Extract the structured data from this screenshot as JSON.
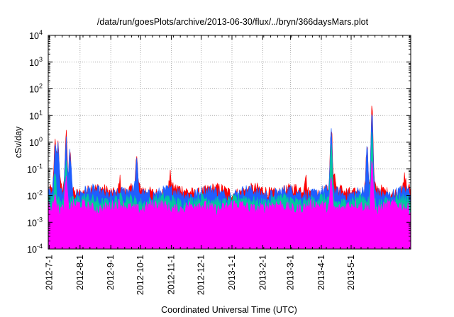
{
  "chart_data": {
    "type": "area",
    "title": "/data/run/goesPlots/archive/2013-06-30/flux/../bryn/366daysMars.plot",
    "xlabel": "Coordinated Universal Time (UTC)",
    "ylabel": "cSv/day",
    "yscale": "log",
    "ylim": [
      0.0001,
      10000
    ],
    "xlim": [
      "2012-06-30",
      "2013-06-30"
    ],
    "grid": true,
    "y_ticks": [
      {
        "base": "10",
        "exp": "-4"
      },
      {
        "base": "10",
        "exp": "-3"
      },
      {
        "base": "10",
        "exp": "-2"
      },
      {
        "base": "10",
        "exp": "-1"
      },
      {
        "base": "10",
        "exp": "0"
      },
      {
        "base": "10",
        "exp": "1"
      },
      {
        "base": "10",
        "exp": "2"
      },
      {
        "base": "10",
        "exp": "3"
      },
      {
        "base": "10",
        "exp": "4"
      }
    ],
    "x_ticks": [
      {
        "label": "2012-7-1",
        "date": "2012-07-01"
      },
      {
        "label": "2012-8-1",
        "date": "2012-08-01"
      },
      {
        "label": "2012-9-1",
        "date": "2012-09-01"
      },
      {
        "label": "2012-10-1",
        "date": "2012-10-01"
      },
      {
        "label": "2012-11-1",
        "date": "2012-11-01"
      },
      {
        "label": "2012-12-1",
        "date": "2012-12-01"
      },
      {
        "label": "2013-1-1",
        "date": "2013-01-01"
      },
      {
        "label": "2013-2-1",
        "date": "2013-02-01"
      },
      {
        "label": "2013-3-1",
        "date": "2013-03-01"
      },
      {
        "label": "2013-4-1",
        "date": "2013-04-01"
      },
      {
        "label": "2013-5-1",
        "date": "2013-05-01"
      }
    ],
    "series": [
      {
        "color": "#ff0000",
        "baseline": 0.015,
        "peaks": [
          {
            "date": "2012-07-07",
            "value": 0.8
          },
          {
            "date": "2012-07-10",
            "value": 0.8
          },
          {
            "date": "2012-07-18",
            "value": 2.0
          },
          {
            "date": "2012-07-22",
            "value": 0.8
          },
          {
            "date": "2012-08-14",
            "value": 0.025
          },
          {
            "date": "2012-09-10",
            "value": 0.05
          },
          {
            "date": "2012-09-27",
            "value": 0.2
          },
          {
            "date": "2012-10-31",
            "value": 0.05
          },
          {
            "date": "2013-03-16",
            "value": 0.06
          },
          {
            "date": "2013-04-11",
            "value": 2.5
          },
          {
            "date": "2013-04-14",
            "value": 0.05
          },
          {
            "date": "2013-05-17",
            "value": 0.5
          },
          {
            "date": "2013-05-22",
            "value": 20.0
          },
          {
            "date": "2013-06-24",
            "value": 0.05
          }
        ]
      },
      {
        "color": "#1f5fff",
        "baseline": 0.013,
        "peaks": [
          {
            "date": "2012-07-07",
            "value": 0.6
          },
          {
            "date": "2012-07-10",
            "value": 0.6
          },
          {
            "date": "2012-07-18",
            "value": 1.5
          },
          {
            "date": "2012-07-22",
            "value": 0.6
          },
          {
            "date": "2012-09-27",
            "value": 0.15
          },
          {
            "date": "2013-04-11",
            "value": 2.0
          },
          {
            "date": "2013-05-17",
            "value": 0.4
          },
          {
            "date": "2013-05-22",
            "value": 12.0
          }
        ]
      },
      {
        "color": "#00c8a0",
        "baseline": 0.0065,
        "peaks": [
          {
            "date": "2012-07-07",
            "value": 0.1
          },
          {
            "date": "2012-07-18",
            "value": 0.3
          },
          {
            "date": "2013-04-11",
            "value": 0.5
          },
          {
            "date": "2013-05-22",
            "value": 2.0
          }
        ]
      },
      {
        "color": "#ff00ff",
        "baseline": 0.0038,
        "peaks": [
          {
            "date": "2012-07-07",
            "value": 0.02
          },
          {
            "date": "2012-07-18",
            "value": 0.05
          },
          {
            "date": "2013-04-11",
            "value": 0.05
          },
          {
            "date": "2013-05-22",
            "value": 0.3
          }
        ],
        "min": 0.0002
      }
    ]
  }
}
